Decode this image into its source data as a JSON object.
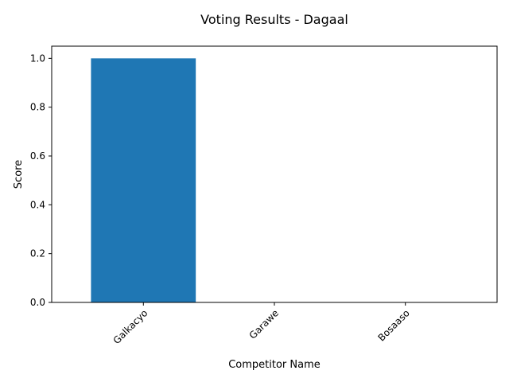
{
  "chart_data": {
    "type": "bar",
    "title": "Voting Results - Dagaal",
    "xlabel": "Competitor Name",
    "ylabel": "Score",
    "categories": [
      "Galkacyo",
      "Garawe",
      "Bosaaso"
    ],
    "values": [
      1,
      0,
      0
    ],
    "ylim": [
      0,
      1.05
    ],
    "yticks": [
      0.0,
      0.2,
      0.4,
      0.6,
      0.8,
      1.0
    ],
    "ytick_labels": [
      "0.0",
      "0.2",
      "0.4",
      "0.6",
      "0.8",
      "1.0"
    ],
    "bar_color": "#1f77b4",
    "grid": false,
    "legend": false
  }
}
